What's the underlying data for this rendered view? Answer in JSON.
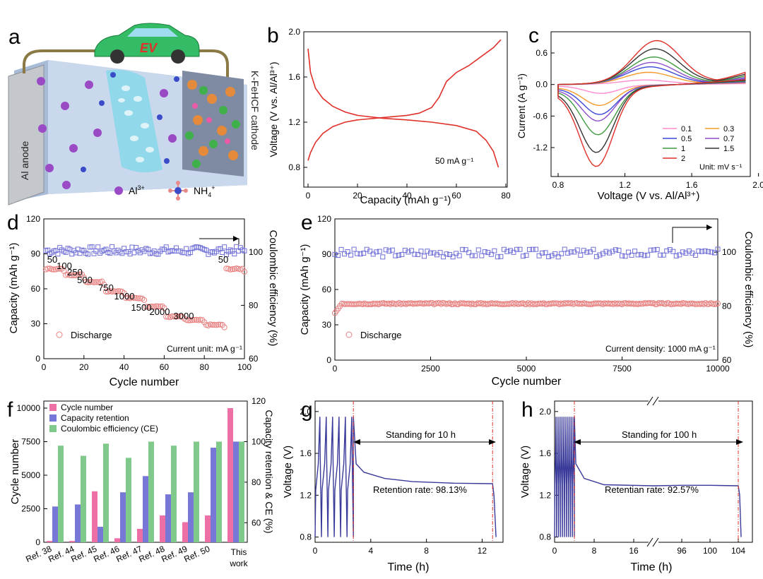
{
  "colors": {
    "red": "#e0302a",
    "blue_square": "#6f6fd8",
    "pink_circle": "#e88080",
    "pink_bar": "#ee6fa5",
    "blue_bar": "#7777d8",
    "green_bar": "#7fc98a",
    "dark_blue_line": "#3a3a9a",
    "cv": [
      "#ff8ccf",
      "#f59a2a",
      "#3b48d8",
      "#8b4fc9",
      "#3f9a3f",
      "#333333",
      "#e0302a"
    ]
  },
  "panel_a": {
    "label": "a",
    "anode": "Al anode",
    "cathode": "K-FeHCF cathode",
    "car_text": "EV",
    "legend_al": "Al",
    "legend_al_sup": "3+",
    "legend_nh4": "NH",
    "legend_nh4_sub": "4",
    "legend_nh4_sup": "+"
  },
  "panel_b": {
    "label": "b",
    "ylabel": "Voltage (V vs. Al/Al³⁺)",
    "xlabel": "Capacity (mAh g⁻¹)",
    "annotation": "50 mA g⁻¹",
    "xticks": [
      "0",
      "20",
      "40",
      "60",
      "80"
    ],
    "yticks": [
      "0.8",
      "1.2",
      "1.6",
      "2.0"
    ]
  },
  "panel_c": {
    "label": "c",
    "ylabel": "Current (A g⁻¹)",
    "xlabel": "Voltage (V vs. Al/Al³⁺)",
    "xticks": [
      "0.8",
      "1.2",
      "1.6",
      "2.0"
    ],
    "yticks": [
      "-1.2",
      "-0.6",
      "0.0",
      "0.6"
    ],
    "legend": [
      "0.1",
      "0.3",
      "0.5",
      "0.7",
      "1",
      "1.5",
      "2"
    ],
    "unit": "Unit: mV s⁻¹"
  },
  "panel_d": {
    "label": "d",
    "ylabel": "Capacity (mAh g⁻¹)",
    "y2label": "Coulombic efficiency (%)",
    "xlabel": "Cycle number",
    "legend": "Discharge",
    "unit_note": "Current unit: mA g⁻¹",
    "xticks": [
      "0",
      "20",
      "40",
      "60",
      "80",
      "100"
    ],
    "yticks": [
      "0",
      "30",
      "60",
      "90",
      "120"
    ],
    "y2ticks": [
      "60",
      "80",
      "100"
    ],
    "rate_labels": [
      "50",
      "100",
      "250",
      "500",
      "750",
      "1000",
      "1500",
      "2000",
      "3000",
      "50"
    ]
  },
  "panel_e": {
    "label": "e",
    "ylabel": "Capacity (mAh g⁻¹)",
    "y2label": "Coulombic efficiency (%)",
    "xlabel": "Cycle number",
    "legend": "Discharge",
    "note": "Current density: 1000 mA g⁻¹",
    "xticks": [
      "0",
      "2500",
      "5000",
      "7500",
      "10000"
    ],
    "yticks": [
      "0",
      "30",
      "60",
      "90",
      "120"
    ],
    "y2ticks": [
      "60",
      "80",
      "100"
    ]
  },
  "panel_f": {
    "label": "f",
    "ylabel": "Cycle number",
    "y2label": "Capacity retention & CE (%)",
    "legend": [
      "Cycle number",
      "Capacity retention",
      "Coulombic efficiency (CE)"
    ],
    "yticks": [
      "0",
      "2500",
      "5000",
      "7500",
      "10000"
    ],
    "y2ticks": [
      "60",
      "80",
      "100",
      "120"
    ],
    "last_category_line2": "work"
  },
  "panel_g": {
    "label": "g",
    "ylabel": "Voltage (V)",
    "xlabel": "Time (h)",
    "standing": "Standing for 10 h",
    "retention": "Retention rate: 98.13%",
    "xticks": [
      "0",
      "4",
      "8",
      "12"
    ],
    "yticks": [
      "0.8",
      "1.2",
      "1.6",
      "2.0"
    ]
  },
  "panel_h": {
    "label": "h",
    "ylabel": "Voltage (V)",
    "xlabel": "Time (h)",
    "standing": "Standing for 100 h",
    "retention": "Retentian rate: 92.57%",
    "xticks": [
      "0",
      "8",
      "16",
      "96",
      "100",
      "104"
    ],
    "yticks": [
      "0.8",
      "1.2",
      "1.6",
      "2.0"
    ]
  },
  "chart_data": [
    {
      "panel": "b",
      "type": "line",
      "xlabel": "Capacity (mAh g⁻¹)",
      "ylabel": "Voltage (V vs. Al/Al³⁺)",
      "xlim": [
        0,
        80
      ],
      "ylim": [
        0.75,
        2.0
      ],
      "series": [
        {
          "values": [
            [
              0,
              1.85
            ],
            [
              1,
              1.64
            ],
            [
              3,
              1.5
            ],
            [
              6,
              1.41
            ],
            [
              10,
              1.34
            ],
            [
              15,
              1.29
            ],
            [
              20,
              1.26
            ],
            [
              30,
              1.235
            ],
            [
              40,
              1.22
            ],
            [
              50,
              1.2
            ],
            [
              60,
              1.17
            ],
            [
              68,
              1.12
            ],
            [
              72,
              1.04
            ],
            [
              75,
              0.94
            ],
            [
              77,
              0.8
            ]
          ]
        },
        {
          "values": [
            [
              0,
              0.86
            ],
            [
              1,
              0.93
            ],
            [
              3,
              1.02
            ],
            [
              6,
              1.1
            ],
            [
              10,
              1.16
            ],
            [
              15,
              1.2
            ],
            [
              20,
              1.22
            ],
            [
              30,
              1.24
            ],
            [
              40,
              1.26
            ],
            [
              45,
              1.28
            ],
            [
              50,
              1.33
            ],
            [
              53,
              1.42
            ],
            [
              56,
              1.56
            ],
            [
              60,
              1.64
            ],
            [
              65,
              1.7
            ],
            [
              70,
              1.78
            ],
            [
              75,
              1.86
            ],
            [
              78,
              1.93
            ]
          ]
        }
      ],
      "annotation": "50 mA g⁻¹"
    },
    {
      "panel": "c",
      "type": "line",
      "xlabel": "Voltage (V vs. Al/Al³⁺)",
      "ylabel": "Current (A g⁻¹)",
      "xlim": [
        0.75,
        1.95
      ],
      "ylim": [
        -1.55,
        0.85
      ],
      "series": [
        {
          "name": "0.1",
          "ox": 1.32,
          "oy": 0.08,
          "rx": 1.06,
          "ry": -0.15,
          "t": 0.05
        },
        {
          "name": "0.3",
          "ox": 1.34,
          "oy": 0.22,
          "rx": 1.05,
          "ry": -0.36,
          "t": 0.1
        },
        {
          "name": "0.5",
          "ox": 1.35,
          "oy": 0.32,
          "rx": 1.05,
          "ry": -0.52,
          "t": 0.13
        },
        {
          "name": "0.7",
          "ox": 1.36,
          "oy": 0.4,
          "rx": 1.04,
          "ry": -0.63,
          "t": 0.16
        },
        {
          "name": "1",
          "ox": 1.37,
          "oy": 0.5,
          "rx": 1.04,
          "ry": -0.88,
          "t": 0.19
        },
        {
          "name": "1.5",
          "ox": 1.38,
          "oy": 0.65,
          "rx": 1.03,
          "ry": -1.2,
          "t": 0.23
        },
        {
          "name": "2",
          "ox": 1.39,
          "oy": 0.8,
          "rx": 1.03,
          "ry": -1.45,
          "t": 0.27
        }
      ]
    },
    {
      "panel": "d",
      "type": "scatter",
      "xlabel": "Cycle number",
      "ylabel": "Capacity (mAh g⁻¹)",
      "xlim": [
        0,
        100
      ],
      "ylim": [
        0,
        120
      ],
      "y2lim": [
        60,
        110
      ],
      "rate_steps": [
        {
          "rate": "50",
          "from": 1,
          "to": 10,
          "capacity": 77
        },
        {
          "rate": "100",
          "from": 11,
          "to": 20,
          "capacity": 72
        },
        {
          "rate": "250",
          "from": 21,
          "to": 30,
          "capacity": 66
        },
        {
          "rate": "500",
          "from": 31,
          "to": 40,
          "capacity": 58
        },
        {
          "rate": "750",
          "from": 41,
          "to": 50,
          "capacity": 52
        },
        {
          "rate": "1000",
          "from": 51,
          "to": 60,
          "capacity": 45
        },
        {
          "rate": "1500",
          "from": 61,
          "to": 70,
          "capacity": 36
        },
        {
          "rate": "2000",
          "from": 71,
          "to": 80,
          "capacity": 33
        },
        {
          "rate": "3000",
          "from": 81,
          "to": 90,
          "capacity": 29
        },
        {
          "rate": "50",
          "from": 91,
          "to": 100,
          "capacity": 77
        }
      ],
      "ce_percent": 100
    },
    {
      "panel": "e",
      "type": "scatter",
      "xlabel": "Cycle number",
      "ylabel": "Capacity (mAh g⁻¹)",
      "xlim": [
        0,
        10000
      ],
      "ylim": [
        0,
        120
      ],
      "y2lim": [
        60,
        110
      ],
      "discharge_capacity": 48,
      "initial_capacity": 40,
      "ce_percent": 100
    },
    {
      "panel": "f",
      "type": "bar",
      "categories": [
        "Ref. 38",
        "Ref. 44",
        "Ref. 45",
        "Ref. 46",
        "Ref. 47",
        "Ref. 48",
        "Ref. 49",
        "Ref. 50",
        "This"
      ],
      "series": [
        {
          "name": "Cycle number",
          "values": [
            100,
            100,
            3800,
            300,
            1000,
            2000,
            1500,
            2000,
            10000
          ],
          "axis": "left"
        },
        {
          "name": "Capacity retention",
          "values": [
            68,
            69,
            58,
            75,
            83,
            74,
            75,
            97,
            100
          ],
          "axis": "right"
        },
        {
          "name": "Coulombic efficiency (CE)",
          "values": [
            98,
            93,
            99,
            92,
            100,
            98,
            100,
            100,
            100
          ],
          "axis": "right"
        }
      ],
      "ylim": [
        0,
        10000
      ],
      "y2lim": [
        50,
        120
      ]
    },
    {
      "panel": "g",
      "type": "line",
      "xlabel": "Time (h)",
      "ylabel": "Voltage (V)",
      "xlim": [
        0,
        13.5
      ],
      "ylim": [
        0.75,
        2.1
      ],
      "cycles": 6,
      "standing_start": 2.75,
      "standing_end": 12.75,
      "retention_percent": 98.13
    },
    {
      "panel": "h",
      "type": "line",
      "xlabel": "Time (h)",
      "ylabel": "Voltage (V)",
      "xlim": [
        0,
        106
      ],
      "ylim": [
        0.75,
        2.1
      ],
      "cycles": 10,
      "standing_hours": 100,
      "retention_percent": 92.57
    }
  ]
}
